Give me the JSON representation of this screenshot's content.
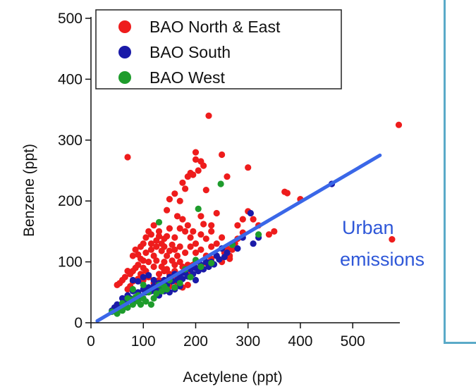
{
  "chart_data": {
    "type": "scatter",
    "xlabel": "Acetylene (ppt)",
    "ylabel": "Benzene (ppt)",
    "xlim": [
      0,
      590
    ],
    "ylim": [
      0,
      500
    ],
    "xticks": [
      0,
      100,
      200,
      300,
      400,
      500
    ],
    "yticks": [
      0,
      100,
      200,
      300,
      400,
      500
    ],
    "grid": false,
    "legend_position": "top-left",
    "series": [
      {
        "name": "BAO North & East",
        "color": "#ee1c1c",
        "points": [
          [
            70,
            272
          ],
          [
            225,
            340
          ],
          [
            588,
            325
          ],
          [
            145,
            185
          ],
          [
            150,
            203
          ],
          [
            160,
            212
          ],
          [
            170,
            200
          ],
          [
            175,
            230
          ],
          [
            180,
            220
          ],
          [
            185,
            240
          ],
          [
            190,
            246
          ],
          [
            195,
            243
          ],
          [
            200,
            280
          ],
          [
            205,
            250
          ],
          [
            210,
            265
          ],
          [
            215,
            258
          ],
          [
            220,
            218
          ],
          [
            200,
            268
          ],
          [
            250,
            276
          ],
          [
            260,
            240
          ],
          [
            300,
            255
          ],
          [
            370,
            215
          ],
          [
            375,
            213
          ],
          [
            400,
            203
          ],
          [
            300,
            183
          ],
          [
            310,
            170
          ],
          [
            320,
            160
          ],
          [
            350,
            150
          ],
          [
            290,
            170
          ],
          [
            280,
            160
          ],
          [
            240,
            180
          ],
          [
            230,
            160
          ],
          [
            250,
            140
          ],
          [
            260,
            122
          ],
          [
            265,
            110
          ],
          [
            270,
            120
          ],
          [
            230,
            150
          ],
          [
            220,
            138
          ],
          [
            210,
            145
          ],
          [
            200,
            130
          ],
          [
            195,
            150
          ],
          [
            190,
            140
          ],
          [
            185,
            160
          ],
          [
            180,
            150
          ],
          [
            175,
            170
          ],
          [
            170,
            155
          ],
          [
            165,
            175
          ],
          [
            160,
            140
          ],
          [
            155,
            128
          ],
          [
            150,
            155
          ],
          [
            145,
            142
          ],
          [
            140,
            138
          ],
          [
            135,
            130
          ],
          [
            130,
            150
          ],
          [
            125,
            125
          ],
          [
            120,
            110
          ],
          [
            115,
            120
          ],
          [
            110,
            100
          ],
          [
            105,
            115
          ],
          [
            100,
            90
          ],
          [
            95,
            105
          ],
          [
            90,
            95
          ],
          [
            85,
            90
          ],
          [
            80,
            85
          ],
          [
            75,
            80
          ],
          [
            70,
            85
          ],
          [
            65,
            75
          ],
          [
            60,
            70
          ],
          [
            55,
            65
          ],
          [
            50,
            62
          ],
          [
            80,
            110
          ],
          [
            85,
            120
          ],
          [
            90,
            112
          ],
          [
            95,
            125
          ],
          [
            100,
            130
          ],
          [
            105,
            140
          ],
          [
            110,
            150
          ],
          [
            115,
            145
          ],
          [
            120,
            160
          ],
          [
            125,
            135
          ],
          [
            130,
            142
          ],
          [
            135,
            118
          ],
          [
            140,
            125
          ],
          [
            145,
            110
          ],
          [
            150,
            118
          ],
          [
            155,
            102
          ],
          [
            160,
            95
          ],
          [
            165,
            110
          ],
          [
            170,
            100
          ],
          [
            175,
            92
          ],
          [
            180,
            88
          ],
          [
            185,
            95
          ],
          [
            190,
            80
          ],
          [
            195,
            95
          ],
          [
            200,
            100
          ],
          [
            210,
            90
          ],
          [
            220,
            98
          ],
          [
            230,
            105
          ],
          [
            240,
            110
          ],
          [
            250,
            100
          ],
          [
            270,
            130
          ],
          [
            280,
            138
          ],
          [
            290,
            148
          ],
          [
            340,
            145
          ],
          [
            150,
            60
          ],
          [
            160,
            72
          ],
          [
            170,
            80
          ],
          [
            140,
            85
          ],
          [
            130,
            80
          ],
          [
            120,
            92
          ],
          [
            110,
            75
          ],
          [
            100,
            70
          ],
          [
            90,
            72
          ],
          [
            80,
            68
          ],
          [
            75,
            60
          ],
          [
            70,
            55
          ],
          [
            120,
            65
          ],
          [
            130,
            70
          ],
          [
            140,
            70
          ],
          [
            150,
            80
          ],
          [
            160,
            85
          ],
          [
            200,
            115
          ],
          [
            210,
            120
          ],
          [
            220,
            110
          ],
          [
            180,
            115
          ],
          [
            190,
            125
          ],
          [
            170,
            125
          ],
          [
            230,
            125
          ],
          [
            240,
            130
          ],
          [
            255,
            115
          ],
          [
            265,
            105
          ],
          [
            275,
            130
          ],
          [
            210,
            175
          ],
          [
            215,
            162
          ],
          [
            160,
            120
          ],
          [
            140,
            100
          ],
          [
            105,
            85
          ],
          [
            95,
            80
          ],
          [
            100,
            102
          ],
          [
            115,
            130
          ],
          [
            125,
            102
          ],
          [
            135,
            92
          ],
          [
            145,
            88
          ],
          [
            155,
            78
          ],
          [
            165,
            66
          ],
          [
            175,
            58
          ],
          [
            185,
            62
          ],
          [
            575,
            137
          ]
        ]
      },
      {
        "name": "BAO South",
        "color": "#1a1aa8",
        "points": [
          [
            460,
            228
          ],
          [
            305,
            180
          ],
          [
            290,
            140
          ],
          [
            310,
            130
          ],
          [
            270,
            130
          ],
          [
            250,
            122
          ],
          [
            240,
            110
          ],
          [
            230,
            100
          ],
          [
            220,
            100
          ],
          [
            210,
            95
          ],
          [
            200,
            90
          ],
          [
            190,
            88
          ],
          [
            180,
            82
          ],
          [
            170,
            78
          ],
          [
            160,
            80
          ],
          [
            150,
            75
          ],
          [
            140,
            70
          ],
          [
            130,
            65
          ],
          [
            120,
            60
          ],
          [
            110,
            58
          ],
          [
            100,
            55
          ],
          [
            90,
            50
          ],
          [
            80,
            52
          ],
          [
            70,
            45
          ],
          [
            60,
            40
          ],
          [
            50,
            30
          ],
          [
            40,
            20
          ],
          [
            55,
            28
          ],
          [
            65,
            35
          ],
          [
            75,
            40
          ],
          [
            85,
            38
          ],
          [
            95,
            42
          ],
          [
            105,
            50
          ],
          [
            115,
            52
          ],
          [
            125,
            56
          ],
          [
            135,
            60
          ],
          [
            145,
            62
          ],
          [
            155,
            68
          ],
          [
            165,
            70
          ],
          [
            175,
            72
          ],
          [
            185,
            76
          ],
          [
            195,
            80
          ],
          [
            205,
            85
          ],
          [
            215,
            88
          ],
          [
            225,
            92
          ],
          [
            235,
            96
          ],
          [
            245,
            104
          ],
          [
            255,
            108
          ],
          [
            320,
            140
          ],
          [
            100,
            75
          ],
          [
            110,
            78
          ],
          [
            120,
            70
          ],
          [
            90,
            68
          ],
          [
            80,
            70
          ],
          [
            170,
            60
          ],
          [
            160,
            55
          ],
          [
            150,
            50
          ],
          [
            200,
            70
          ],
          [
            130,
            45
          ],
          [
            140,
            52
          ],
          [
            60,
            22
          ],
          [
            50,
            18
          ],
          [
            45,
            25
          ],
          [
            70,
            25
          ],
          [
            280,
            122
          ],
          [
            260,
            115
          ]
        ]
      },
      {
        "name": "BAO West",
        "color": "#1e9c2c",
        "points": [
          [
            248,
            228
          ],
          [
            205,
            187
          ],
          [
            130,
            165
          ],
          [
            320,
            145
          ],
          [
            270,
            128
          ],
          [
            200,
            103
          ],
          [
            180,
            88
          ],
          [
            150,
            70
          ],
          [
            140,
            60
          ],
          [
            130,
            62
          ],
          [
            110,
            50
          ],
          [
            100,
            40
          ],
          [
            90,
            35
          ],
          [
            80,
            30
          ],
          [
            70,
            25
          ],
          [
            60,
            20
          ],
          [
            50,
            15
          ],
          [
            40,
            18
          ],
          [
            55,
            22
          ],
          [
            65,
            28
          ],
          [
            75,
            38
          ],
          [
            85,
            42
          ],
          [
            95,
            30
          ],
          [
            105,
            35
          ],
          [
            115,
            30
          ],
          [
            120,
            40
          ],
          [
            125,
            48
          ],
          [
            135,
            52
          ],
          [
            145,
            55
          ],
          [
            160,
            58
          ],
          [
            170,
            65
          ],
          [
            190,
            75
          ],
          [
            210,
            92
          ],
          [
            230,
            98
          ],
          [
            80,
            55
          ],
          [
            100,
            62
          ],
          [
            90,
            45
          ],
          [
            70,
            40
          ],
          [
            60,
            32
          ]
        ]
      }
    ],
    "fit_line": {
      "color": "#3a67e8",
      "from": [
        12,
        3
      ],
      "to": [
        552,
        275
      ],
      "label_lines": [
        "Urban",
        "emissions"
      ]
    }
  }
}
